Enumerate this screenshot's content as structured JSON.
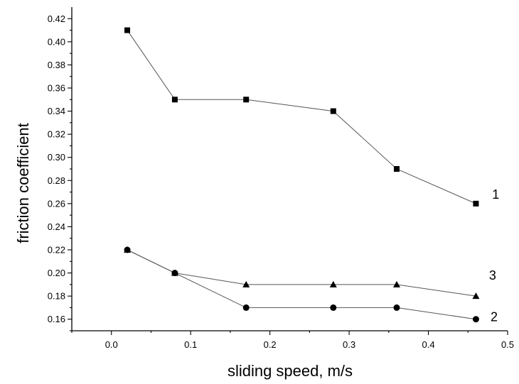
{
  "chart_data": {
    "type": "scatter",
    "title": "",
    "xlabel": "sliding speed, m/s",
    "ylabel": "friction coefficient",
    "xlim": [
      -0.05,
      0.5
    ],
    "ylim": [
      0.15,
      0.43
    ],
    "x_ticks": [
      0.0,
      0.1,
      0.2,
      0.3,
      0.4,
      0.5
    ],
    "x_tick_labels": [
      "0.0",
      "0.1",
      "0.2",
      "0.3",
      "0.4",
      "0.5"
    ],
    "y_ticks": [
      0.16,
      0.18,
      0.2,
      0.22,
      0.24,
      0.26,
      0.28,
      0.3,
      0.32,
      0.34,
      0.36,
      0.38,
      0.4,
      0.42
    ],
    "y_tick_labels": [
      "0.16",
      "0.18",
      "0.20",
      "0.22",
      "0.24",
      "0.26",
      "0.28",
      "0.30",
      "0.32",
      "0.34",
      "0.36",
      "0.38",
      "0.40",
      "0.42"
    ],
    "grid": false,
    "legend": "none",
    "line_color": "#555555",
    "marker_color": "#000000",
    "series": [
      {
        "label": "1",
        "marker": "square",
        "x": [
          0.02,
          0.08,
          0.17,
          0.28,
          0.36,
          0.46
        ],
        "y": [
          0.41,
          0.35,
          0.35,
          0.34,
          0.29,
          0.26
        ],
        "label_anchor": [
          0.485,
          0.268
        ]
      },
      {
        "label": "2",
        "marker": "circle",
        "x": [
          0.02,
          0.08,
          0.17,
          0.28,
          0.36,
          0.46
        ],
        "y": [
          0.22,
          0.2,
          0.17,
          0.17,
          0.17,
          0.16
        ],
        "label_anchor": [
          0.483,
          0.162
        ]
      },
      {
        "label": "3",
        "marker": "triangle",
        "x": [
          0.02,
          0.08,
          0.17,
          0.28,
          0.36,
          0.46
        ],
        "y": [
          0.22,
          0.2,
          0.19,
          0.19,
          0.19,
          0.18
        ],
        "label_anchor": [
          0.481,
          0.198
        ]
      }
    ]
  }
}
